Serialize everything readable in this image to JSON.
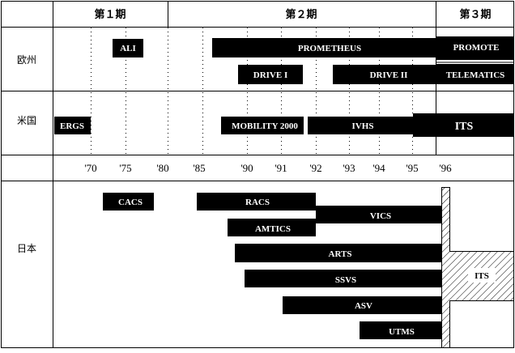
{
  "periods": [
    {
      "label": "第１期"
    },
    {
      "label": "第２期"
    },
    {
      "label": "第３期"
    }
  ],
  "regions": [
    {
      "label": "欧州"
    },
    {
      "label": "米国"
    },
    {
      "label": "日本"
    }
  ],
  "ticks": [
    "'70",
    "'75",
    "'80",
    "'85",
    "'90",
    "'91",
    "'92",
    "'93",
    "'94",
    "'95",
    "'96"
  ],
  "bars": {
    "europe": [
      {
        "label": "ALI"
      },
      {
        "label": "PROMETHEUS"
      },
      {
        "label": "PROMOTE"
      },
      {
        "label": "DRIVE I"
      },
      {
        "label": "DRIVE II"
      },
      {
        "label": "TELEMATICS"
      }
    ],
    "us": [
      {
        "label": "ERGS"
      },
      {
        "label": "MOBILITY 2000"
      },
      {
        "label": "IVHS"
      },
      {
        "label": "ITS"
      }
    ],
    "japan": [
      {
        "label": "CACS"
      },
      {
        "label": "RACS"
      },
      {
        "label": "VICS"
      },
      {
        "label": "AMTICS"
      },
      {
        "label": "ARTS"
      },
      {
        "label": "SSVS"
      },
      {
        "label": "ASV"
      },
      {
        "label": "UTMS"
      }
    ],
    "japan_its": {
      "label": "ITS"
    }
  },
  "colors": {
    "bar": "#000000",
    "bar_text": "#ffffff",
    "line": "#000000",
    "background": "#ffffff"
  }
}
